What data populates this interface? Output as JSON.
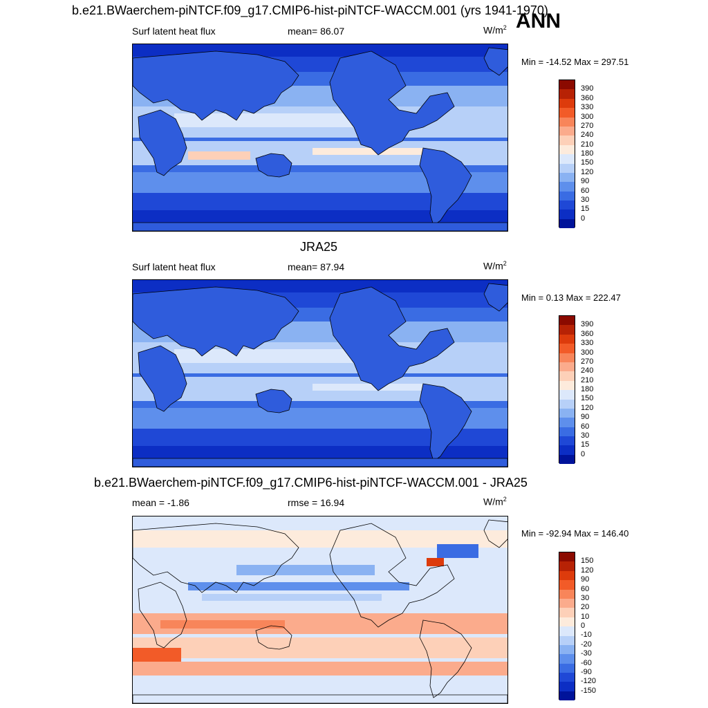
{
  "season": "ANN",
  "panels": [
    {
      "title": "b.e21.BWaerchem-piNTCF.f09_g17.CMIP6-hist-piNTCF-WACCM.001 (yrs 1941-1970)",
      "left_label": "Surf latent heat flux",
      "mid_label": "mean=  86.07",
      "units": "W/m",
      "units_sup": "2",
      "minmax": "Min = -14.52 Max = 297.51",
      "colorbar": {
        "labels": [
          "390",
          "360",
          "330",
          "300",
          "270",
          "240",
          "210",
          "180",
          "150",
          "120",
          "90",
          "60",
          "30",
          "15",
          "0"
        ],
        "colors": [
          "#8b0a00",
          "#b72205",
          "#dd3b0c",
          "#f25b28",
          "#f8855a",
          "#fbab8c",
          "#fdd0b8",
          "#fdebdc",
          "#dce8fb",
          "#b7d0f8",
          "#8ab2f2",
          "#5e8fec",
          "#3a6ce3",
          "#1f48d6",
          "#0c2ec4",
          "#00139a"
        ]
      },
      "chart_data": {
        "type": "heatmap",
        "variable": "Surf latent heat flux",
        "mean": 86.07,
        "min": -14.52,
        "max": 297.51,
        "units": "W/m2",
        "levels": [
          0,
          15,
          30,
          60,
          90,
          120,
          150,
          180,
          210,
          240,
          270,
          300,
          330,
          360,
          390
        ]
      }
    },
    {
      "title": "JRA25",
      "left_label": "Surf latent heat flux",
      "mid_label": "mean=  87.94",
      "units": "W/m",
      "units_sup": "2",
      "minmax": "Min =   0.13 Max = 222.47",
      "colorbar": {
        "labels": [
          "390",
          "360",
          "330",
          "300",
          "270",
          "240",
          "210",
          "180",
          "150",
          "120",
          "90",
          "60",
          "30",
          "15",
          "0"
        ],
        "colors": [
          "#8b0a00",
          "#b72205",
          "#dd3b0c",
          "#f25b28",
          "#f8855a",
          "#fbab8c",
          "#fdd0b8",
          "#fdebdc",
          "#dce8fb",
          "#b7d0f8",
          "#8ab2f2",
          "#5e8fec",
          "#3a6ce3",
          "#1f48d6",
          "#0c2ec4",
          "#00139a"
        ]
      },
      "chart_data": {
        "type": "heatmap",
        "variable": "Surf latent heat flux",
        "mean": 87.94,
        "min": 0.13,
        "max": 222.47,
        "units": "W/m2",
        "levels": [
          0,
          15,
          30,
          60,
          90,
          120,
          150,
          180,
          210,
          240,
          270,
          300,
          330,
          360,
          390
        ]
      }
    },
    {
      "title": "b.e21.BWaerchem-piNTCF.f09_g17.CMIP6-hist-piNTCF-WACCM.001 - JRA25",
      "left_label": "mean =  -1.86",
      "mid_label": "rmse =  16.94",
      "units": "W/m",
      "units_sup": "2",
      "minmax": "Min = -92.94 Max = 146.40",
      "colorbar": {
        "labels": [
          "150",
          "120",
          "90",
          "60",
          "30",
          "20",
          "10",
          "0",
          "-10",
          "-20",
          "-30",
          "-60",
          "-90",
          "-120",
          "-150"
        ],
        "colors": [
          "#8b0a00",
          "#b72205",
          "#dd3b0c",
          "#f25b28",
          "#f8855a",
          "#fbab8c",
          "#fdd0b8",
          "#fdebdc",
          "#dce8fb",
          "#b7d0f8",
          "#8ab2f2",
          "#5e8fec",
          "#3a6ce3",
          "#1f48d6",
          "#0c2ec4",
          "#00139a"
        ]
      },
      "chart_data": {
        "type": "heatmap",
        "mean": -1.86,
        "rmse": 16.94,
        "min": -92.94,
        "max": 146.4,
        "units": "W/m2",
        "levels": [
          -150,
          -120,
          -90,
          -60,
          -30,
          -20,
          -10,
          0,
          10,
          20,
          30,
          60,
          90,
          120,
          150
        ]
      }
    }
  ]
}
